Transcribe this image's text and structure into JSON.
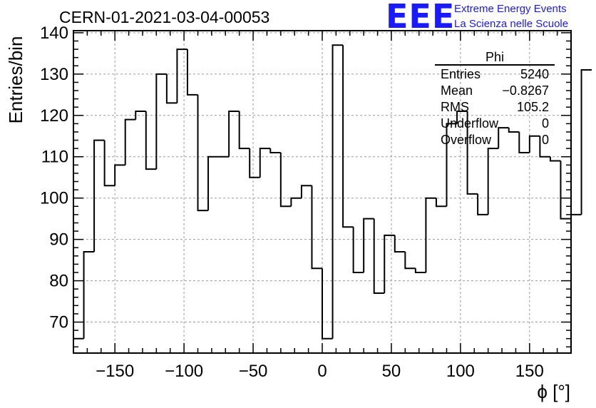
{
  "header": {
    "run_title": "CERN-01-2021-03-04-00053",
    "logo": {
      "mark": "EEE",
      "line1": "Extreme Energy Events",
      "line2": "La Scienza nelle Scuole",
      "color": "#1a1aff"
    }
  },
  "stats_box": {
    "name": "Phi",
    "rows": [
      {
        "label": "Entries",
        "value": "5240"
      },
      {
        "label": "Mean",
        "value": "−0.8267"
      },
      {
        "label": "RMS",
        "value": "105.2"
      },
      {
        "label": "Underflow",
        "value": "0"
      },
      {
        "label": "Overflow",
        "value": "0"
      }
    ]
  },
  "chart_data": {
    "type": "histogram",
    "title": "CERN-01-2021-03-04-00053",
    "xlabel": "ϕ [°]",
    "ylabel": "Entries/bin",
    "xlim": [
      -180,
      180
    ],
    "ylim": [
      62.5,
      140.5
    ],
    "x_ticks": [
      -150,
      -100,
      -50,
      0,
      50,
      100,
      150
    ],
    "x_tick_labels": [
      "−150",
      "−100",
      "−50",
      "0",
      "50",
      "100",
      "150"
    ],
    "y_ticks": [
      70,
      80,
      90,
      100,
      110,
      120,
      130,
      140
    ],
    "y_tick_labels": [
      "70",
      "80",
      "90",
      "100",
      "110",
      "120",
      "130",
      "140"
    ],
    "grid": true,
    "bin_width": 7.5,
    "bin_edges_start": -180,
    "values": [
      66,
      87,
      114,
      103,
      108,
      119,
      121,
      107,
      130,
      123,
      136,
      125,
      97,
      110,
      110,
      121,
      112,
      105,
      112,
      111,
      98,
      100,
      103,
      83,
      66,
      137,
      93,
      82,
      95,
      77,
      91,
      87,
      83,
      82,
      100,
      98,
      118,
      121,
      101,
      96,
      112,
      117,
      116,
      111,
      115,
      110,
      109,
      95,
      96,
      131
    ]
  }
}
